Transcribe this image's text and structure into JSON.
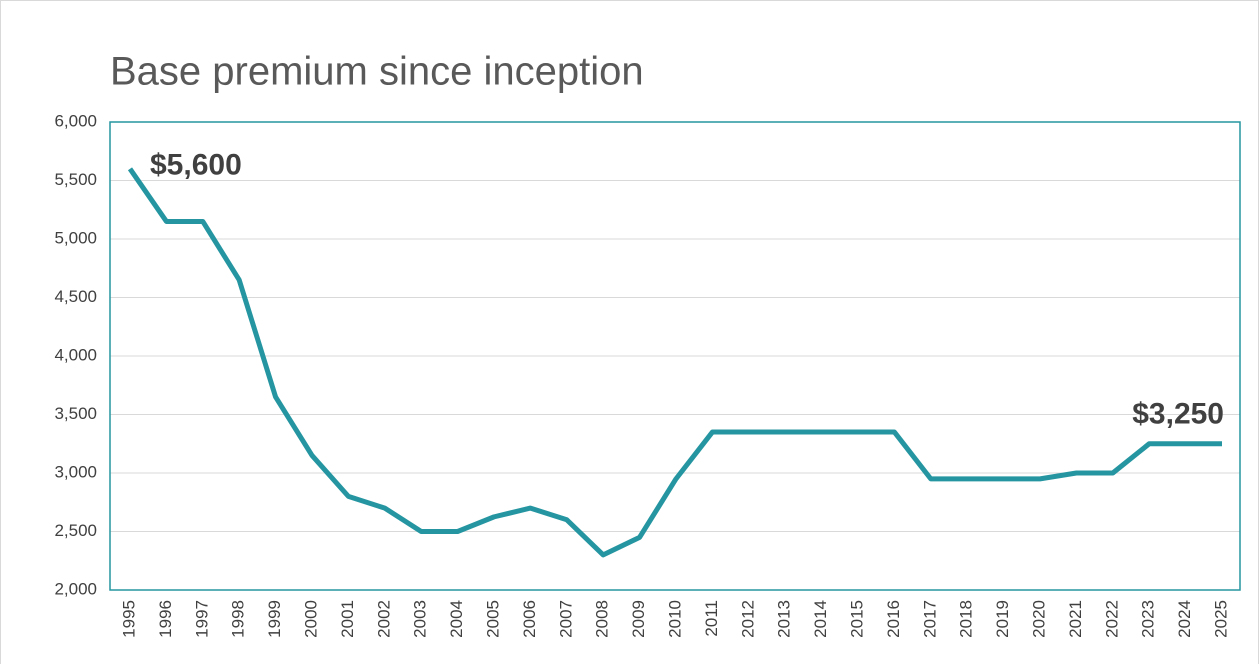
{
  "chart_data": {
    "type": "line",
    "title": "Base premium since inception",
    "categories": [
      "1995",
      "1996",
      "1997",
      "1998",
      "1999",
      "2000",
      "2001",
      "2002",
      "2003",
      "2004",
      "2005",
      "2006",
      "2007",
      "2008",
      "2009",
      "2010",
      "2011",
      "2012",
      "2013",
      "2014",
      "2015",
      "2016",
      "2017",
      "2018",
      "2019",
      "2020",
      "2021",
      "2022",
      "2023",
      "2024",
      "2025"
    ],
    "values": [
      5600,
      5150,
      5150,
      4650,
      3650,
      3150,
      2800,
      2700,
      2500,
      2500,
      2625,
      2700,
      2600,
      2300,
      2450,
      2950,
      3350,
      3350,
      3350,
      3350,
      3350,
      3350,
      2950,
      2950,
      2950,
      2950,
      3000,
      3000,
      3250,
      3250,
      3250
    ],
    "value_labels": [
      "$5,600",
      null,
      null,
      null,
      null,
      null,
      null,
      null,
      null,
      null,
      null,
      null,
      null,
      null,
      null,
      null,
      null,
      null,
      null,
      null,
      null,
      null,
      null,
      null,
      null,
      null,
      null,
      null,
      null,
      null,
      "$3,250"
    ],
    "color": "#2596a1",
    "ylim": [
      2000,
      6000
    ],
    "yticks": [
      {
        "value": 2000,
        "label": "2,000"
      },
      {
        "value": 2500,
        "label": "2,500"
      },
      {
        "value": 3000,
        "label": "3,000"
      },
      {
        "value": 3500,
        "label": "3,500"
      },
      {
        "value": 4000,
        "label": "4,000"
      },
      {
        "value": 4500,
        "label": "4,500"
      },
      {
        "value": 5000,
        "label": "5,000"
      },
      {
        "value": 5500,
        "label": "5,500"
      },
      {
        "value": 6000,
        "label": "6,000"
      }
    ],
    "grid": true
  }
}
